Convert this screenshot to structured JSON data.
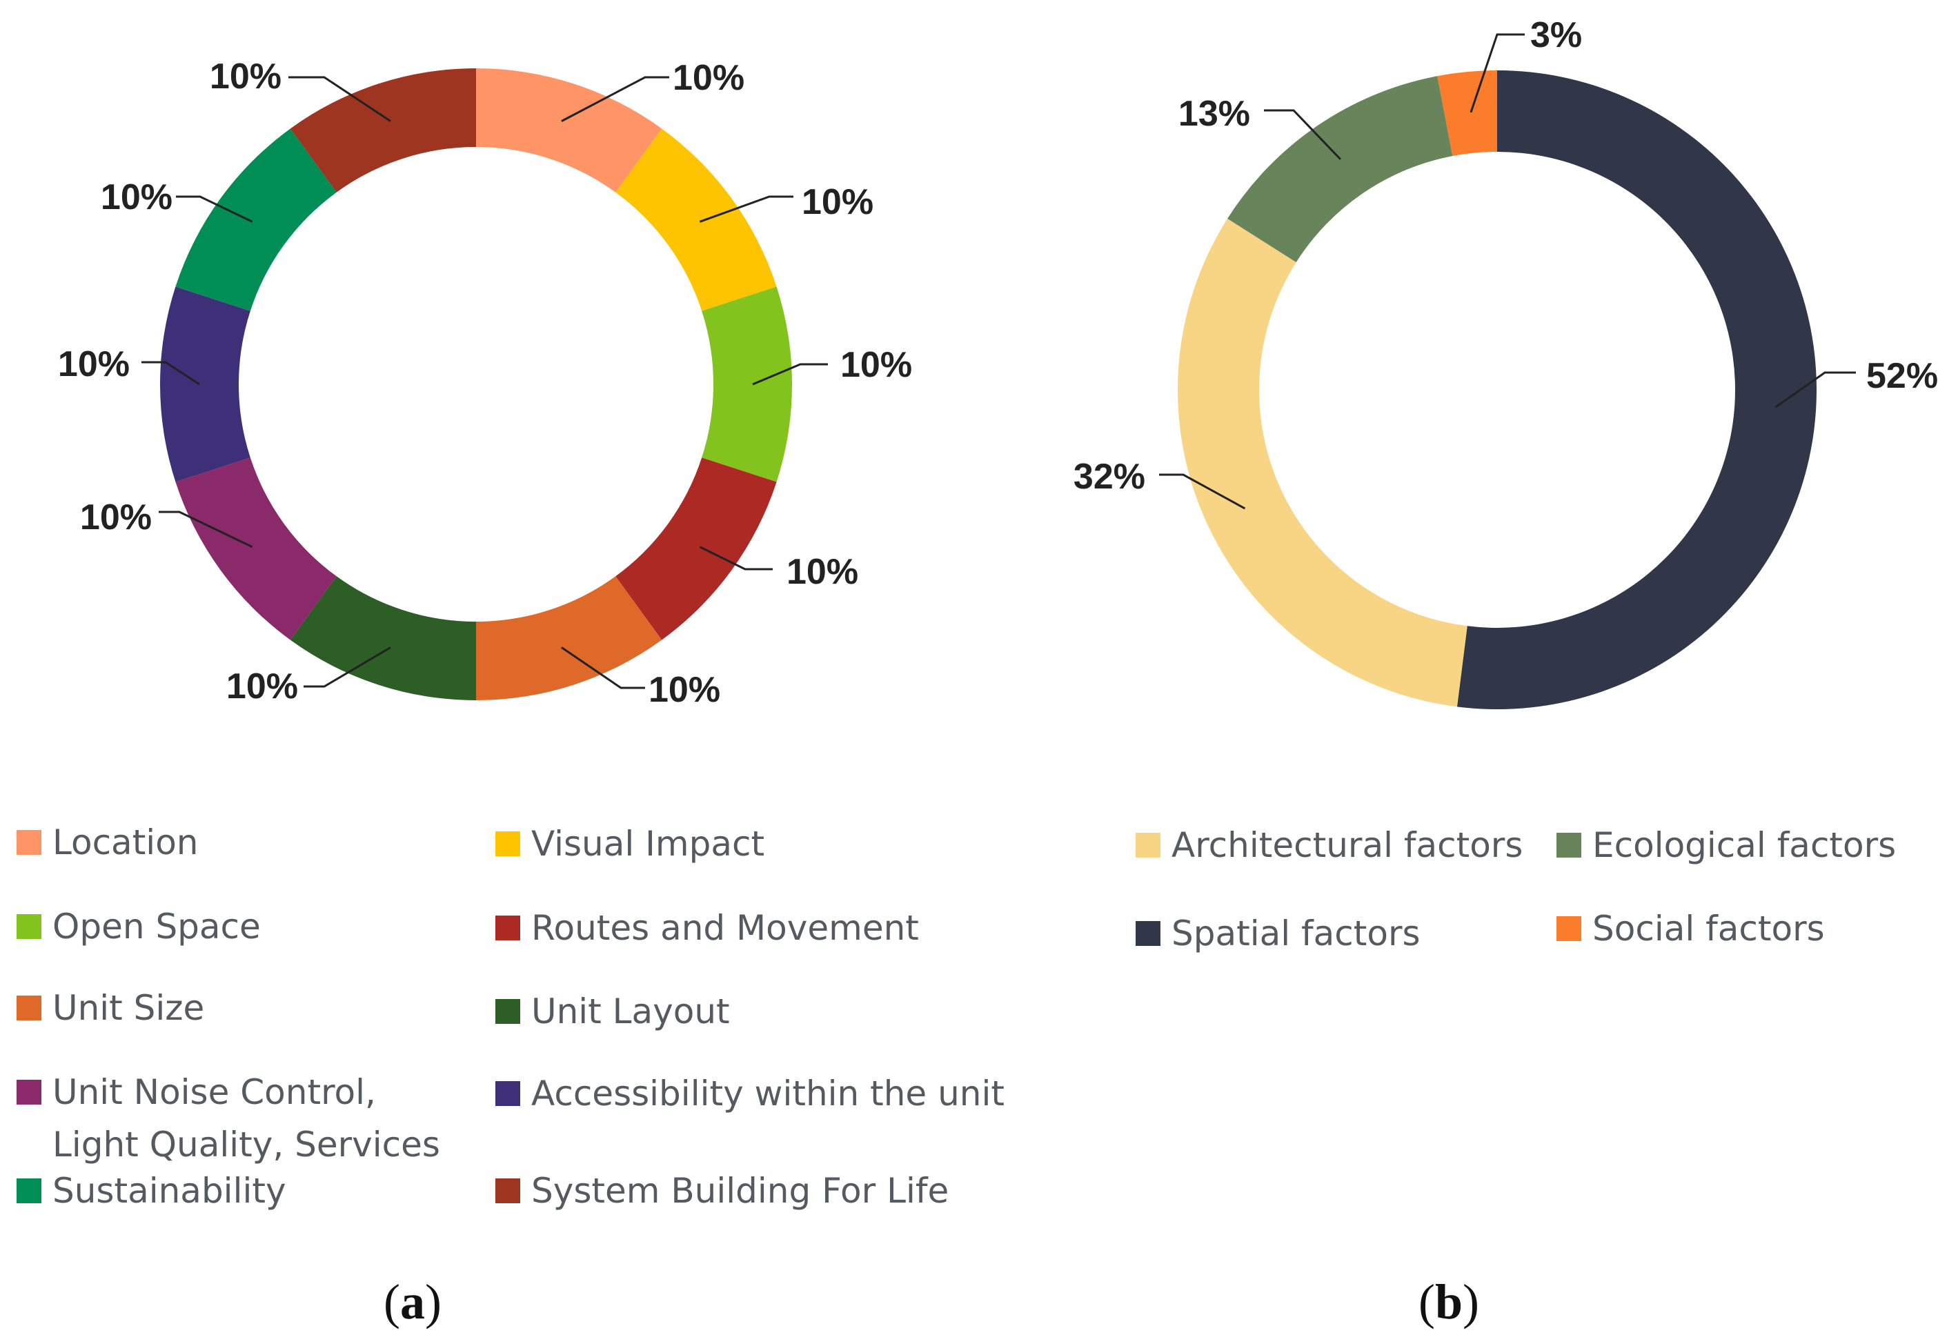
{
  "chart_data": [
    {
      "type": "pie",
      "style": "donut",
      "title": "",
      "categories": [
        "Location",
        "Visual Impact",
        "Open Space",
        "Routes and Movement",
        "Unit Size",
        "Unit Layout",
        "Unit Noise Control, Light Quality, Services",
        "Accessibility within the unit",
        "Sustainability",
        "System Building For Life"
      ],
      "values": [
        10,
        10,
        10,
        10,
        10,
        10,
        10,
        10,
        10,
        10
      ],
      "labels": [
        "10%",
        "10%",
        "10%",
        "10%",
        "10%",
        "10%",
        "10%",
        "10%",
        "10%",
        "10%"
      ],
      "colors": [
        "#FF9466",
        "#FFC400",
        "#82C31E",
        "#AD2924",
        "#DE6929",
        "#2D5E26",
        "#8B2A6B",
        "#3D3078",
        "#008E56",
        "#9E3520"
      ],
      "slice_order": [
        0,
        1,
        2,
        3,
        4,
        5,
        6,
        7,
        8,
        9
      ],
      "legend": {
        "items": [
          {
            "label": "Location",
            "color": "#FF9466"
          },
          {
            "label": "Visual Impact",
            "color": "#FFC400"
          },
          {
            "label": "Open Space",
            "color": "#82C31E"
          },
          {
            "label": "Routes and Movement",
            "color": "#AD2924"
          },
          {
            "label": "Unit Size",
            "color": "#DE6929"
          },
          {
            "label": "Unit Layout",
            "color": "#2D5E26"
          },
          {
            "label": "Unit Noise Control,",
            "label2": "Light Quality, Services",
            "color": "#8B2A6B"
          },
          {
            "label": "Accessibility within the unit",
            "color": "#3D3078"
          },
          {
            "label": "Sustainability",
            "color": "#008E56"
          },
          {
            "label": "System Building For Life",
            "color": "#9E3520"
          }
        ]
      },
      "caption": "a"
    },
    {
      "type": "pie",
      "style": "donut",
      "title": "",
      "categories": [
        "Architectural factors",
        "Ecological factors",
        "Spatial factors",
        "Social factors"
      ],
      "values": [
        32,
        13,
        52,
        3
      ],
      "labels": [
        "32%",
        "13%",
        "52%",
        "3%"
      ],
      "colors": [
        "#F8D585",
        "#68845A",
        "#323649",
        "#FB7C2A"
      ],
      "slice_order": [
        2,
        0,
        1,
        3
      ],
      "legend": {
        "items": [
          {
            "label": "Architectural factors",
            "color": "#F8D585"
          },
          {
            "label": "Ecological factors",
            "color": "#68845A"
          },
          {
            "label": "Spatial factors",
            "color": "#323649"
          },
          {
            "label": "Social factors",
            "color": "#FB7C2A"
          }
        ]
      },
      "caption": "b"
    }
  ]
}
